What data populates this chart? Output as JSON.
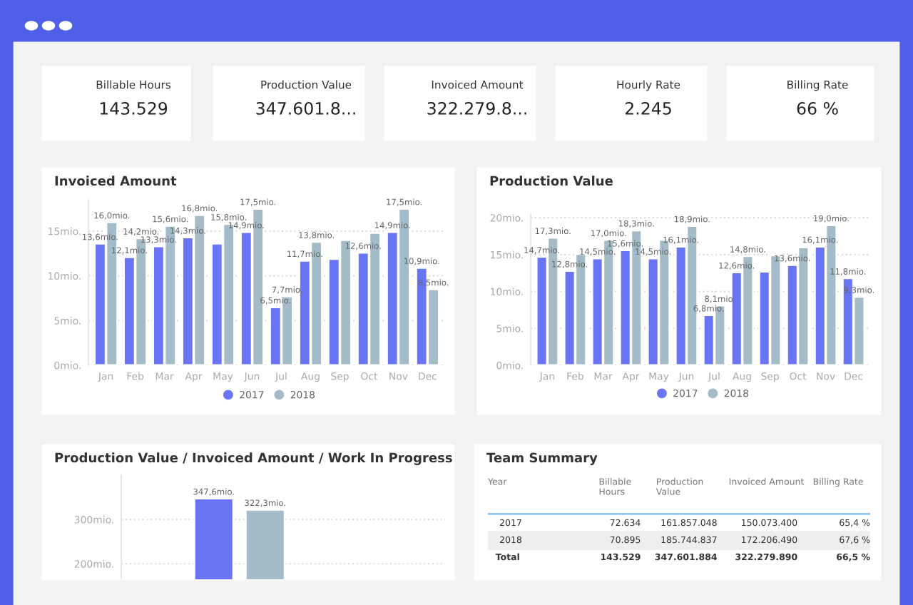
{
  "chart_data": [
    {
      "type": "other",
      "title": "Billable Hours",
      "annotations": [
        "143.529"
      ]
    },
    {
      "type": "other",
      "title": "Production Value",
      "annotations": [
        "347.601.8..."
      ]
    },
    {
      "type": "other",
      "title": "Invoiced Amount",
      "annotations": [
        "322.279.8..."
      ]
    },
    {
      "type": "other",
      "title": "Hourly Rate",
      "annotations": [
        "2.245"
      ]
    },
    {
      "type": "other",
      "title": "Billing Rate",
      "annotations": [
        "66 %"
      ]
    },
    {
      "type": "bar",
      "title": "Invoiced Amount",
      "categories": [
        "Jan",
        "Feb",
        "Mar",
        "Apr",
        "May",
        "Jun",
        "Jul",
        "Aug",
        "Sep",
        "Oct",
        "Nov",
        "Dec"
      ],
      "series": [
        {
          "name": "2017",
          "color": "#6a75f5",
          "values": [
            13.6,
            12.1,
            13.3,
            14.3,
            13.6,
            14.9,
            6.5,
            11.7,
            11.9,
            12.6,
            14.9,
            10.9
          ],
          "value_labels": [
            "13,6mio.",
            "12,1mio.",
            "13,3mio.",
            "14,3mio.",
            null,
            "14,9mio.",
            "6,5mio.",
            "11,7mio.",
            null,
            "12,6mio.",
            "14,9mio.",
            "10,9mio."
          ]
        },
        {
          "name": "2018",
          "color": "#a4bcc8",
          "values": [
            16.0,
            14.2,
            15.6,
            16.8,
            15.8,
            17.5,
            7.7,
            13.8,
            14.0,
            14.8,
            17.5,
            8.5
          ],
          "value_labels": [
            "16,0mio.",
            "14,2mio.",
            "15,6mio.",
            "16,8mio.",
            "15,8mio.",
            "17,5mio.",
            "7,7mio.",
            "13,8mio.",
            null,
            null,
            "17,5mio.",
            "8,5mio."
          ]
        }
      ],
      "ylim": [
        0,
        18.5
      ],
      "yticks": [
        {
          "value": 0,
          "label": "0mio."
        },
        {
          "value": 5,
          "label": "5mio."
        },
        {
          "value": 10,
          "label": "10mio."
        },
        {
          "value": 15,
          "label": "15mio."
        }
      ],
      "grid": "y",
      "legend": "bottom",
      "marker": "circle"
    },
    {
      "type": "bar",
      "title": "Production Value",
      "categories": [
        "Jan",
        "Feb",
        "Mar",
        "Apr",
        "May",
        "Jun",
        "Jul",
        "Aug",
        "Sep",
        "Oct",
        "Nov",
        "Dec"
      ],
      "series": [
        {
          "name": "2017",
          "color": "#6a75f5",
          "values": [
            14.7,
            12.8,
            14.5,
            15.6,
            14.5,
            16.1,
            6.8,
            12.6,
            12.7,
            13.6,
            16.1,
            11.8
          ],
          "value_labels": [
            "14,7mio.",
            "12,8mio.",
            "14,5mio.",
            "15,6mio.",
            "14,5mio.",
            "16,1mio.",
            "6,8mio.",
            "12,6mio.",
            null,
            "13,6mio.",
            "16,1mio.",
            "11,8mio."
          ]
        },
        {
          "name": "2018",
          "color": "#a4bcc8",
          "values": [
            17.3,
            15.1,
            17.0,
            18.3,
            17.0,
            18.9,
            8.1,
            14.8,
            14.9,
            16.0,
            19.0,
            9.3
          ],
          "value_labels": [
            "17,3mio.",
            null,
            "17,0mio.",
            "18,3mio.",
            null,
            "18,9mio.",
            "8,1mio.",
            "14,8mio.",
            null,
            null,
            "19,0mio.",
            "9,3mio."
          ]
        }
      ],
      "ylim": [
        0,
        20.5
      ],
      "yticks": [
        {
          "value": 0,
          "label": "0mio."
        },
        {
          "value": 5,
          "label": "5mio."
        },
        {
          "value": 10,
          "label": "10mio."
        },
        {
          "value": 15,
          "label": "15mio."
        },
        {
          "value": 20,
          "label": "20mio."
        }
      ],
      "grid": "y",
      "legend": "bottom",
      "marker": "circle"
    },
    {
      "type": "bar",
      "title": "Production Value / Invoiced Amount / Work In Progress",
      "categories": [
        null,
        null
      ],
      "values": [
        347.6,
        322.3
      ],
      "colors": [
        "#6a75f5",
        "#a4bcc8"
      ],
      "value_labels": [
        "347,6mio.",
        "322,3mio."
      ],
      "ylim": [
        165,
        400
      ],
      "yticks": [
        {
          "value": 200,
          "label": "200mio."
        },
        {
          "value": 300,
          "label": "300mio."
        }
      ],
      "grid": "y"
    },
    {
      "type": "other",
      "title": "Team Summary",
      "categories": [
        "Year",
        "Billable\nHours",
        "Production\nValue",
        "Invoiced Amount",
        "Billing Rate"
      ],
      "cell_labels": [
        [
          "2017",
          "72.634",
          "161.857.048",
          "150.073.400",
          "65,4 %"
        ],
        [
          "2018",
          "70.895",
          "185.744.837",
          "172.206.490",
          "67,6 %"
        ],
        [
          "Total",
          "143.529",
          "347.601.884",
          "322.279.890",
          "66,5 %"
        ]
      ]
    }
  ]
}
